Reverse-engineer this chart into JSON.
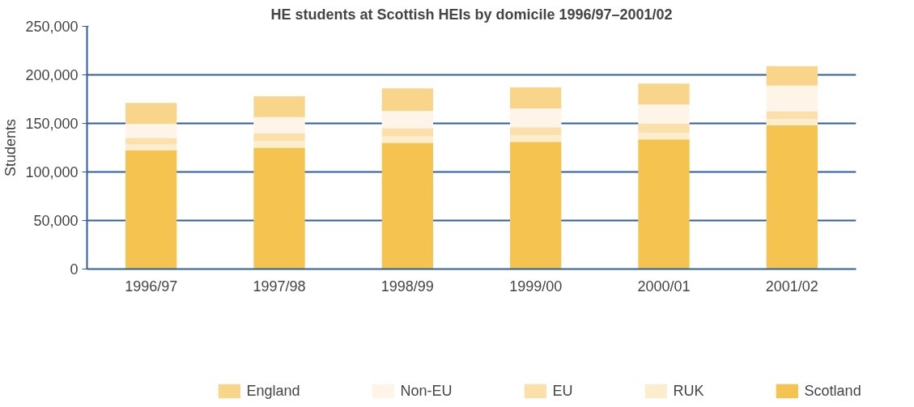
{
  "chart_data": {
    "type": "bar",
    "stacked": true,
    "title": "HE students at Scottish HEIs by domicile 1996/97–2001/02",
    "ylabel": "Students",
    "categories": [
      "1996/97",
      "1997/98",
      "1998/99",
      "1999/00",
      "2000/01",
      "2001/02"
    ],
    "series": [
      {
        "name": "Scotland",
        "color": "#f5c350",
        "values": [
          122000,
          125000,
          130000,
          131000,
          133500,
          148000
        ]
      },
      {
        "name": "RUK",
        "color": "#fdedcf",
        "values": [
          6500,
          7000,
          6500,
          7000,
          6500,
          6500
        ]
      },
      {
        "name": "EU",
        "color": "#fce0ab",
        "values": [
          6500,
          8000,
          8500,
          8000,
          9500,
          8000
        ]
      },
      {
        "name": "Non-EU",
        "color": "#fef4e8",
        "values": [
          14500,
          16500,
          18000,
          19500,
          20000,
          26500
        ]
      },
      {
        "name": "England",
        "color": "#f9d58c",
        "values": [
          21500,
          21500,
          23000,
          21500,
          21500,
          20000
        ]
      }
    ],
    "ylim": [
      0,
      250000
    ],
    "yticks": [
      {
        "value": 0,
        "label": "0"
      },
      {
        "value": 50000,
        "label": "50,000"
      },
      {
        "value": 100000,
        "label": "100,000"
      },
      {
        "value": 150000,
        "label": "150,000"
      },
      {
        "value": 200000,
        "label": "200,000"
      },
      {
        "value": 250000,
        "label": "250,000"
      }
    ],
    "grid": "y",
    "legend": "bottom"
  }
}
